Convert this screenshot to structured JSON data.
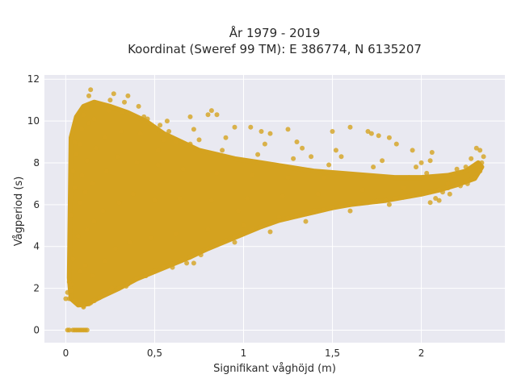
{
  "chart_data": {
    "type": "scatter",
    "title": [
      "År 1979 - 2019",
      "Koordinat (Sweref 99 TM): E 386774, N 6135207"
    ],
    "xlabel": "Signifikant våghöjd (m)",
    "ylabel": "Vågperiod (s)",
    "xlim": [
      -0.12,
      2.47
    ],
    "ylim": [
      -0.6,
      12.2
    ],
    "x_ticks": [
      0,
      0.5,
      1,
      1.5,
      2
    ],
    "x_tick_labels": [
      "0",
      "0,5",
      "1",
      "1,5",
      "2"
    ],
    "y_ticks": [
      0,
      2,
      4,
      6,
      8,
      10,
      12
    ],
    "y_tick_labels": [
      "0",
      "2",
      "4",
      "6",
      "8",
      "10",
      "12"
    ],
    "grid": true,
    "background": "#e9e9f1",
    "marker_color": "#d4a21f",
    "points": [
      [
        0.02,
        1.5
      ],
      [
        0.03,
        2.2
      ],
      [
        0.04,
        3.4
      ],
      [
        0.03,
        5.5
      ],
      [
        0.05,
        6.8
      ],
      [
        0.04,
        7.6
      ],
      [
        0.06,
        8.4
      ],
      [
        0.05,
        9.0
      ],
      [
        0.07,
        1.2
      ],
      [
        0.08,
        2.8
      ],
      [
        0.07,
        4.5
      ],
      [
        0.08,
        6.1
      ],
      [
        0.09,
        7.4
      ],
      [
        0.08,
        8.9
      ],
      [
        0.09,
        9.6
      ],
      [
        0.1,
        10.3
      ],
      [
        0.1,
        1.1
      ],
      [
        0.11,
        3.1
      ],
      [
        0.12,
        4.8
      ],
      [
        0.11,
        6.6
      ],
      [
        0.12,
        8.1
      ],
      [
        0.13,
        9.9
      ],
      [
        0.12,
        10.6
      ],
      [
        0.13,
        11.2
      ],
      [
        0.14,
        1.3
      ],
      [
        0.15,
        2.6
      ],
      [
        0.16,
        5.2
      ],
      [
        0.15,
        7.0
      ],
      [
        0.17,
        8.7
      ],
      [
        0.16,
        10.1
      ],
      [
        0.14,
        11.5
      ],
      [
        0.18,
        10.8
      ],
      [
        0.2,
        1.6
      ],
      [
        0.22,
        3.3
      ],
      [
        0.21,
        5.7
      ],
      [
        0.23,
        7.6
      ],
      [
        0.22,
        9.2
      ],
      [
        0.24,
        10.5
      ],
      [
        0.25,
        11.0
      ],
      [
        0.27,
        11.3
      ],
      [
        0.26,
        2.0
      ],
      [
        0.28,
        3.9
      ],
      [
        0.3,
        6.1
      ],
      [
        0.29,
        8.3
      ],
      [
        0.31,
        9.5
      ],
      [
        0.32,
        10.4
      ],
      [
        0.35,
        11.2
      ],
      [
        0.33,
        10.9
      ],
      [
        0.34,
        2.1
      ],
      [
        0.36,
        4.2
      ],
      [
        0.38,
        6.5
      ],
      [
        0.4,
        8.0
      ],
      [
        0.42,
        9.4
      ],
      [
        0.44,
        10.2
      ],
      [
        0.41,
        10.7
      ],
      [
        0.46,
        10.1
      ],
      [
        0.45,
        2.6
      ],
      [
        0.48,
        4.4
      ],
      [
        0.5,
        6.2
      ],
      [
        0.52,
        7.9
      ],
      [
        0.55,
        9.1
      ],
      [
        0.53,
        9.8
      ],
      [
        0.58,
        9.5
      ],
      [
        0.57,
        10.0
      ],
      [
        0.6,
        3.0
      ],
      [
        0.62,
        4.6
      ],
      [
        0.64,
        6.3
      ],
      [
        0.66,
        7.7
      ],
      [
        0.7,
        8.9
      ],
      [
        0.72,
        9.6
      ],
      [
        0.75,
        9.1
      ],
      [
        0.68,
        3.2
      ],
      [
        0.76,
        3.6
      ],
      [
        0.8,
        4.8
      ],
      [
        0.82,
        6.2
      ],
      [
        0.85,
        7.5
      ],
      [
        0.88,
        8.6
      ],
      [
        0.82,
        10.5
      ],
      [
        0.8,
        10.3
      ],
      [
        0.9,
        9.2
      ],
      [
        0.95,
        4.2
      ],
      [
        1.0,
        5.0
      ],
      [
        1.02,
        6.3
      ],
      [
        1.05,
        7.4
      ],
      [
        1.08,
        8.4
      ],
      [
        1.1,
        9.5
      ],
      [
        1.04,
        9.7
      ],
      [
        1.12,
        8.9
      ],
      [
        1.15,
        4.7
      ],
      [
        1.2,
        5.4
      ],
      [
        1.22,
        6.4
      ],
      [
        1.25,
        7.3
      ],
      [
        1.28,
        8.2
      ],
      [
        1.3,
        9.0
      ],
      [
        1.33,
        8.7
      ],
      [
        1.38,
        8.3
      ],
      [
        1.35,
        5.2
      ],
      [
        1.4,
        5.7
      ],
      [
        1.42,
        6.5
      ],
      [
        1.45,
        7.3
      ],
      [
        1.48,
        7.9
      ],
      [
        1.52,
        8.6
      ],
      [
        1.55,
        8.3
      ],
      [
        1.5,
        9.5
      ],
      [
        1.6,
        5.7
      ],
      [
        1.65,
        6.1
      ],
      [
        1.67,
        6.7
      ],
      [
        1.7,
        7.3
      ],
      [
        1.73,
        7.8
      ],
      [
        1.78,
        8.1
      ],
      [
        1.72,
        9.4
      ],
      [
        1.76,
        9.3
      ],
      [
        1.82,
        6.0
      ],
      [
        1.86,
        6.3
      ],
      [
        1.9,
        6.8
      ],
      [
        1.93,
        7.3
      ],
      [
        1.97,
        7.8
      ],
      [
        2.0,
        8.0
      ],
      [
        2.05,
        8.1
      ],
      [
        2.03,
        7.5
      ],
      [
        2.08,
        6.3
      ],
      [
        2.12,
        6.6
      ],
      [
        2.15,
        7.0
      ],
      [
        2.18,
        7.4
      ],
      [
        2.2,
        7.7
      ],
      [
        2.25,
        7.8
      ],
      [
        2.28,
        8.2
      ],
      [
        2.31,
        8.7
      ],
      [
        2.33,
        8.6
      ],
      [
        2.35,
        8.3
      ],
      [
        2.3,
        7.3
      ],
      [
        2.26,
        7.0
      ],
      [
        2.22,
        6.9
      ],
      [
        2.16,
        6.5
      ],
      [
        2.1,
        6.2
      ],
      [
        2.05,
        6.1
      ],
      [
        0.01,
        0.0
      ],
      [
        0.02,
        0.0
      ],
      [
        0.04,
        0.0
      ],
      [
        0.05,
        0.0
      ],
      [
        0.06,
        0.0
      ],
      [
        0.07,
        0.0
      ],
      [
        0.08,
        0.0
      ],
      [
        0.09,
        0.0
      ],
      [
        0.1,
        0.0
      ],
      [
        0.11,
        0.0
      ],
      [
        0.12,
        0.0
      ],
      [
        0.0,
        1.5
      ],
      [
        0.01,
        1.8
      ],
      [
        0.02,
        2.3
      ],
      [
        0.03,
        1.9
      ],
      [
        0.05,
        1.4
      ],
      [
        0.06,
        1.3
      ],
      [
        0.08,
        1.2
      ],
      [
        0.1,
        1.15
      ],
      [
        0.13,
        1.25
      ],
      [
        0.16,
        1.4
      ],
      [
        0.19,
        1.55
      ],
      [
        0.22,
        1.7
      ],
      [
        0.25,
        1.85
      ],
      [
        0.3,
        2.0
      ],
      [
        0.35,
        2.2
      ],
      [
        0.4,
        2.45
      ],
      [
        0.45,
        2.6
      ],
      [
        0.5,
        2.8
      ],
      [
        0.55,
        3.0
      ],
      [
        0.6,
        3.15
      ],
      [
        0.65,
        3.35
      ],
      [
        0.7,
        3.5
      ],
      [
        0.75,
        3.7
      ],
      [
        0.8,
        3.9
      ],
      [
        0.85,
        4.1
      ],
      [
        0.9,
        4.25
      ],
      [
        0.95,
        4.45
      ],
      [
        1.0,
        4.6
      ],
      [
        1.05,
        4.8
      ],
      [
        1.1,
        4.95
      ],
      [
        1.15,
        5.1
      ],
      [
        1.2,
        5.25
      ],
      [
        1.25,
        5.35
      ],
      [
        1.3,
        5.45
      ],
      [
        1.35,
        5.55
      ],
      [
        1.4,
        5.65
      ],
      [
        1.45,
        5.75
      ],
      [
        1.5,
        5.85
      ],
      [
        1.55,
        5.95
      ],
      [
        1.6,
        6.0
      ],
      [
        1.65,
        6.05
      ],
      [
        1.7,
        6.1
      ],
      [
        1.75,
        6.15
      ],
      [
        1.8,
        6.2
      ],
      [
        1.85,
        6.3
      ],
      [
        1.9,
        6.35
      ],
      [
        1.95,
        6.45
      ],
      [
        2.0,
        6.5
      ],
      [
        2.05,
        6.6
      ],
      [
        2.1,
        6.7
      ],
      [
        2.15,
        6.8
      ],
      [
        2.2,
        6.95
      ],
      [
        2.25,
        7.1
      ],
      [
        2.3,
        7.3
      ],
      [
        2.33,
        7.6
      ],
      [
        2.34,
        8.0
      ],
      [
        0.72,
        3.2
      ],
      [
        0.97,
        5.7
      ],
      [
        0.62,
        9.0
      ],
      [
        0.52,
        8.6
      ],
      [
        1.25,
        9.6
      ],
      [
        1.15,
        9.4
      ],
      [
        1.6,
        9.7
      ],
      [
        1.7,
        9.5
      ],
      [
        1.82,
        9.2
      ],
      [
        1.86,
        8.9
      ],
      [
        2.06,
        8.5
      ],
      [
        1.95,
        8.6
      ],
      [
        0.85,
        10.3
      ],
      [
        0.7,
        10.2
      ],
      [
        0.95,
        9.7
      ]
    ]
  }
}
